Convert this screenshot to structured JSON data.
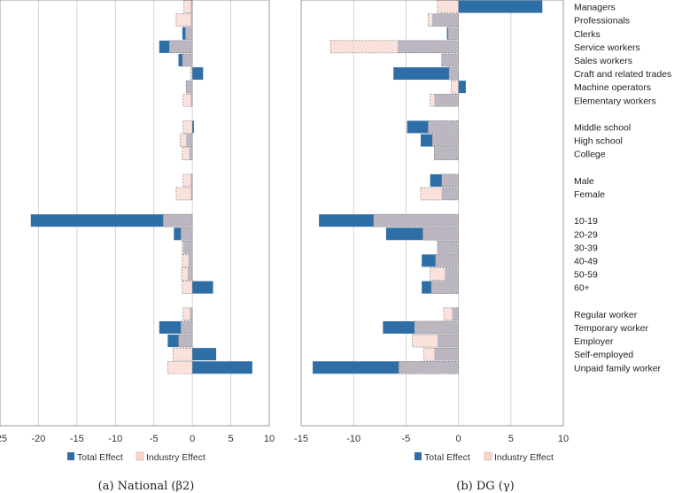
{
  "chart_data": [
    {
      "type": "bar",
      "orientation": "horizontal",
      "title": "(a) National (β2)",
      "xlim": [
        -25,
        10
      ],
      "xticks": [
        -25,
        -20,
        -15,
        -10,
        -5,
        0,
        5,
        10
      ],
      "series": [
        {
          "name": "Total Effect",
          "color": "#2e6ea6",
          "values": [
            -0.2,
            -0.2,
            -1.3,
            -4.3,
            -1.8,
            1.4,
            -0.8,
            -0.2,
            null,
            0.2,
            -0.8,
            -0.4,
            null,
            -0.2,
            -0.2,
            null,
            -21,
            -2.4,
            -1.2,
            -0.5,
            -0.6,
            2.7,
            null,
            -0.3,
            -4.3,
            -3.2,
            3.1,
            7.8
          ]
        },
        {
          "name": "Industry Effect",
          "color": "#fad4cd",
          "values": [
            -1.1,
            -2.1,
            -0.9,
            -3.0,
            -1.3,
            -0.2,
            -0.8,
            -1.2,
            null,
            -1.2,
            -1.6,
            -1.3,
            null,
            -1.2,
            -2.1,
            null,
            -3.8,
            -1.5,
            -1.3,
            -1.3,
            -1.4,
            -1.3,
            null,
            -1.2,
            -1.5,
            -1.8,
            -2.5,
            -3.2
          ]
        }
      ]
    },
    {
      "type": "bar",
      "orientation": "horizontal",
      "title": "(b) DG (γ)",
      "xlim": [
        -15,
        10
      ],
      "xticks": [
        -15,
        -10,
        -5,
        0,
        5,
        10
      ],
      "categories": [
        "Managers",
        "Professionals",
        "Clerks",
        "Service workers",
        "Sales workers",
        "Craft and related trades",
        "Machine operators",
        "Elementary workers",
        "",
        "Middle school",
        "High school",
        "College",
        "",
        "Male",
        "Female",
        "",
        "10-19",
        "20-29",
        "30-39",
        "40-49",
        "50-59",
        "60+",
        "",
        "Regular worker",
        "Temporary worker",
        "Employer",
        "Self-employed",
        "Unpaid family worker"
      ],
      "series": [
        {
          "name": "Total Effect",
          "color": "#2e6ea6",
          "values": [
            8.0,
            -2.5,
            -1.1,
            -5.8,
            -1.6,
            -6.2,
            0.7,
            -2.3,
            null,
            -4.9,
            -3.6,
            -2.3,
            null,
            -2.7,
            -1.6,
            null,
            -13.3,
            -6.9,
            -2.0,
            -3.5,
            -1.3,
            -3.5,
            null,
            -0.6,
            -7.2,
            -2.0,
            -2.3,
            -13.9
          ]
        },
        {
          "name": "Industry Effect",
          "color": "#fad4cd",
          "values": [
            -2.0,
            -2.9,
            -1.0,
            -12.2,
            -1.6,
            -0.9,
            -0.7,
            -2.7,
            null,
            -2.9,
            -2.5,
            -2.3,
            null,
            -1.6,
            -3.6,
            null,
            -8.1,
            -3.4,
            -2.0,
            -2.2,
            -2.7,
            -2.6,
            null,
            -1.4,
            -4.2,
            -4.4,
            -3.3,
            -5.7
          ]
        }
      ]
    }
  ],
  "legend": {
    "total": "Total Effect",
    "industry": "Industry Effect"
  },
  "captions": {
    "a": "(a) National (β2)",
    "b": "(b) DG (γ)"
  }
}
